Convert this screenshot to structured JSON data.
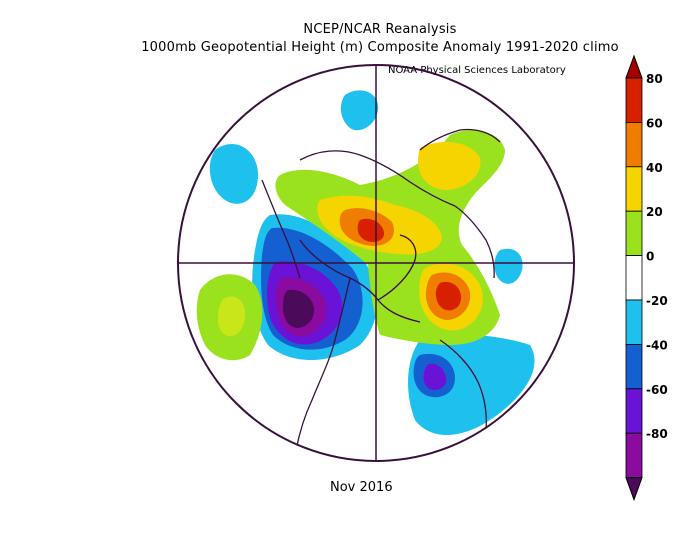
{
  "header": {
    "line1": "NCEP/NCAR Reanalysis",
    "line2": "1000mb Geopotential Height (m) Composite Anomaly 1991-2020 climo",
    "credit": "NOAA Physical Sciences Laboratory"
  },
  "footer": {
    "date": "Nov 2016"
  },
  "colorbar": {
    "levels": [
      {
        "value": 80,
        "color": "#d62000"
      },
      {
        "value": 60,
        "color": "#f07c00"
      },
      {
        "value": 40,
        "color": "#f5d400"
      },
      {
        "value": 20,
        "color": "#9be21e"
      },
      {
        "value": 0,
        "color": "#ffffff"
      },
      {
        "value": -20,
        "color": "#1ec1ee"
      },
      {
        "value": -40,
        "color": "#1560d0"
      },
      {
        "value": -60,
        "color": "#6a12d6"
      },
      {
        "value": -80,
        "color": "#8a0b9e"
      }
    ],
    "tick_labels": [
      "80",
      "60",
      "40",
      "20",
      "0",
      "-20",
      "-40",
      "-60",
      "-80"
    ],
    "top_color": "#a40000",
    "bottom_color": "#4c0a5a"
  }
}
